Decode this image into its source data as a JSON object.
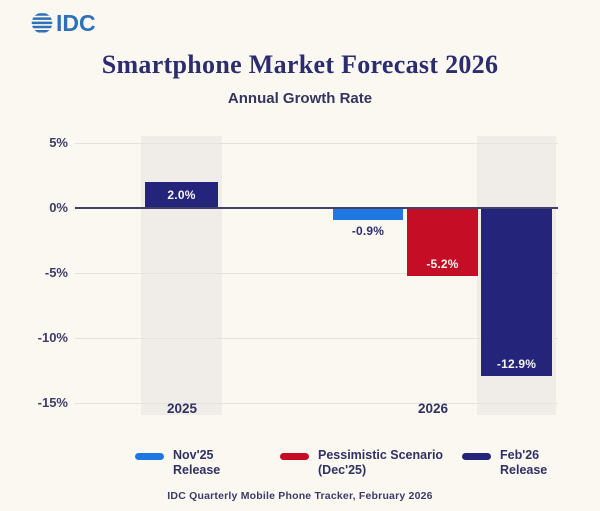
{
  "logo": {
    "text": "IDC"
  },
  "header": {
    "title": "Smartphone Market Forecast 2026",
    "subtitle": "Annual Growth Rate"
  },
  "chart_data": {
    "type": "bar",
    "title": "Smartphone Market Forecast 2026",
    "subtitle": "Annual Growth Rate",
    "ylabel": "Annual Growth Rate (%)",
    "ylim": [
      -15,
      5
    ],
    "grid": true,
    "legend_position": "bottom",
    "yticks": [
      {
        "value": 5,
        "label": "5%"
      },
      {
        "value": 0,
        "label": "0%"
      },
      {
        "value": -5,
        "label": "-5%"
      },
      {
        "value": -10,
        "label": "-10%"
      },
      {
        "value": -15,
        "label": "-15%"
      }
    ],
    "groups": [
      {
        "label": "2025"
      },
      {
        "label": "2026"
      }
    ],
    "bars": [
      {
        "group": "2025",
        "series": "Feb'26 Release",
        "value": 2.0,
        "label": "2.0%",
        "color": "#24247B",
        "label_placement": "inside-center",
        "label_color": "#F7F5F0",
        "highlight_band": true
      },
      {
        "group": "2026",
        "series": "Nov'25 Release",
        "value": -0.9,
        "label": "-0.9%",
        "color": "#1F78E1",
        "label_placement": "below",
        "label_color": "#2B2D6E",
        "highlight_band": false
      },
      {
        "group": "2026",
        "series": "Pessimistic Scenario (Dec'25)",
        "value": -5.2,
        "label": "-5.2%",
        "color": "#C50D25",
        "label_placement": "inside-bottom",
        "label_color": "#F7F5F0",
        "highlight_band": false
      },
      {
        "group": "2026",
        "series": "Feb'26 Release",
        "value": -12.9,
        "label": "-12.9%",
        "color": "#24247B",
        "label_placement": "inside-bottom",
        "label_color": "#F7F5F0",
        "highlight_band": true
      }
    ],
    "legend": [
      {
        "label": "Nov'25\nRelease",
        "color": "#1F78E1"
      },
      {
        "label": "Pessimistic Scenario\n(Dec'25)",
        "color": "#C50D25"
      },
      {
        "label": "Feb'26\nRelease",
        "color": "#24247B"
      }
    ]
  },
  "footer": {
    "source": "IDC Quarterly Mobile Phone Tracker, February 2026"
  },
  "colors": {
    "background": "#FBF8F2",
    "band": "#F0EDE8",
    "gridline": "#E6E3DC",
    "zero_line": "#40406A",
    "logo_blue": "#2E71B8",
    "title_navy": "#2B2D6E",
    "axis_text": "#3D3D68"
  }
}
